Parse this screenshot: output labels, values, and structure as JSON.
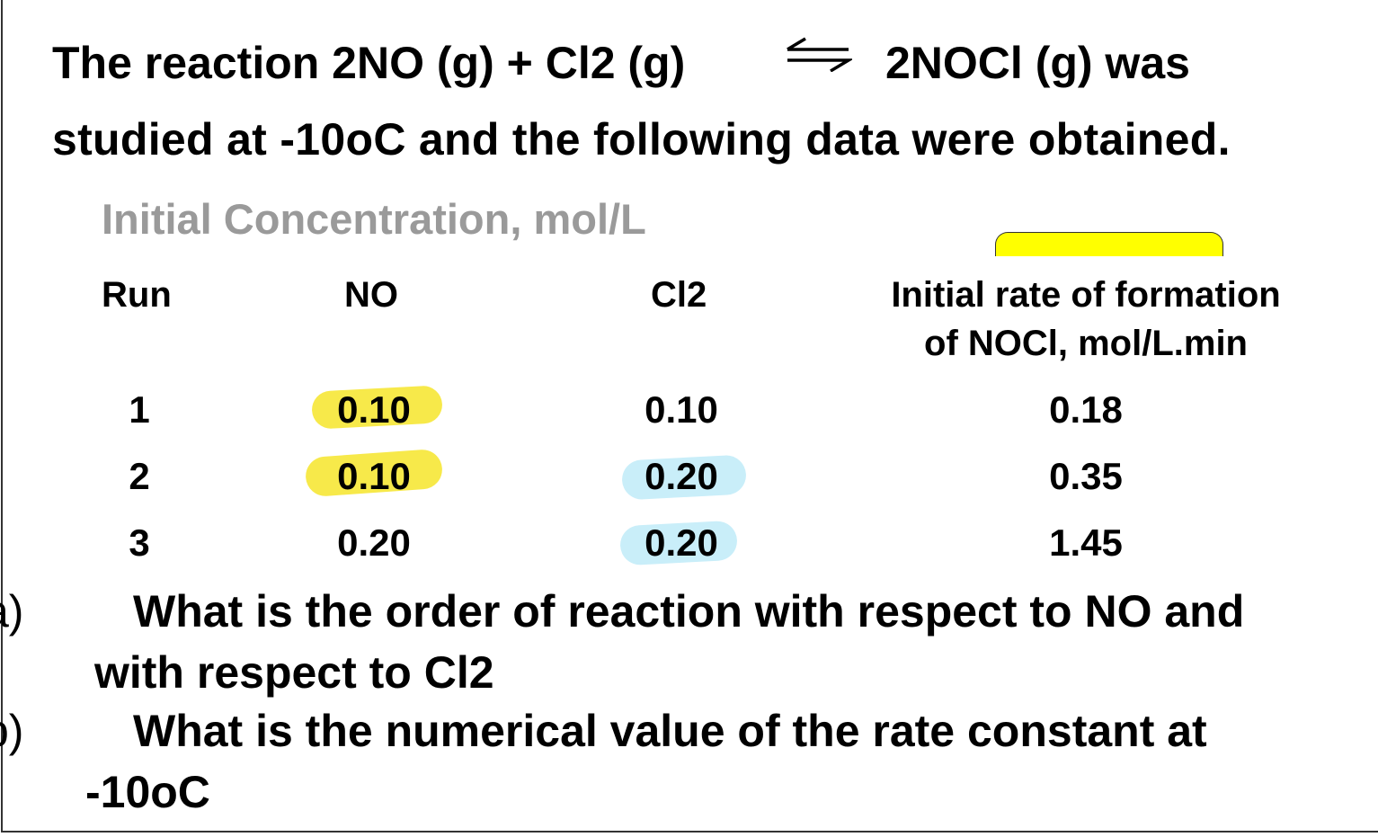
{
  "intro": {
    "line1_left": "The reaction 2NO (g) + Cl2 (g)",
    "arrow": "equilibrium-arrow-icon",
    "line1_right": "2NOCl (g) was",
    "line2": "studied at -10oC and the following data were obtained."
  },
  "table": {
    "group_header": "Initial Concentration, mol/L",
    "columns": [
      "Run",
      "NO",
      "Cl2",
      "Initial rate of formation",
      "of NOCl, mol/L.min"
    ],
    "rows": [
      {
        "run": "1",
        "no": "0.10",
        "cl2": "0.10",
        "rate": "0.18"
      },
      {
        "run": "2",
        "no": "0.10",
        "cl2": "0.20",
        "rate": "0.35"
      },
      {
        "run": "3",
        "no": "0.20",
        "cl2": "0.20",
        "rate": "1.45"
      }
    ],
    "highlight_colors": {
      "yellow": "#f7e94a",
      "blue": "#c9eef9"
    }
  },
  "questions": {
    "a_label": "a)",
    "a_line1": "What is the order of reaction with respect to NO and",
    "a_line2": "with respect to Cl2",
    "b_label": "b)",
    "b_line1": "What is the numerical value of the rate constant at",
    "b_line2": "-10oC"
  }
}
